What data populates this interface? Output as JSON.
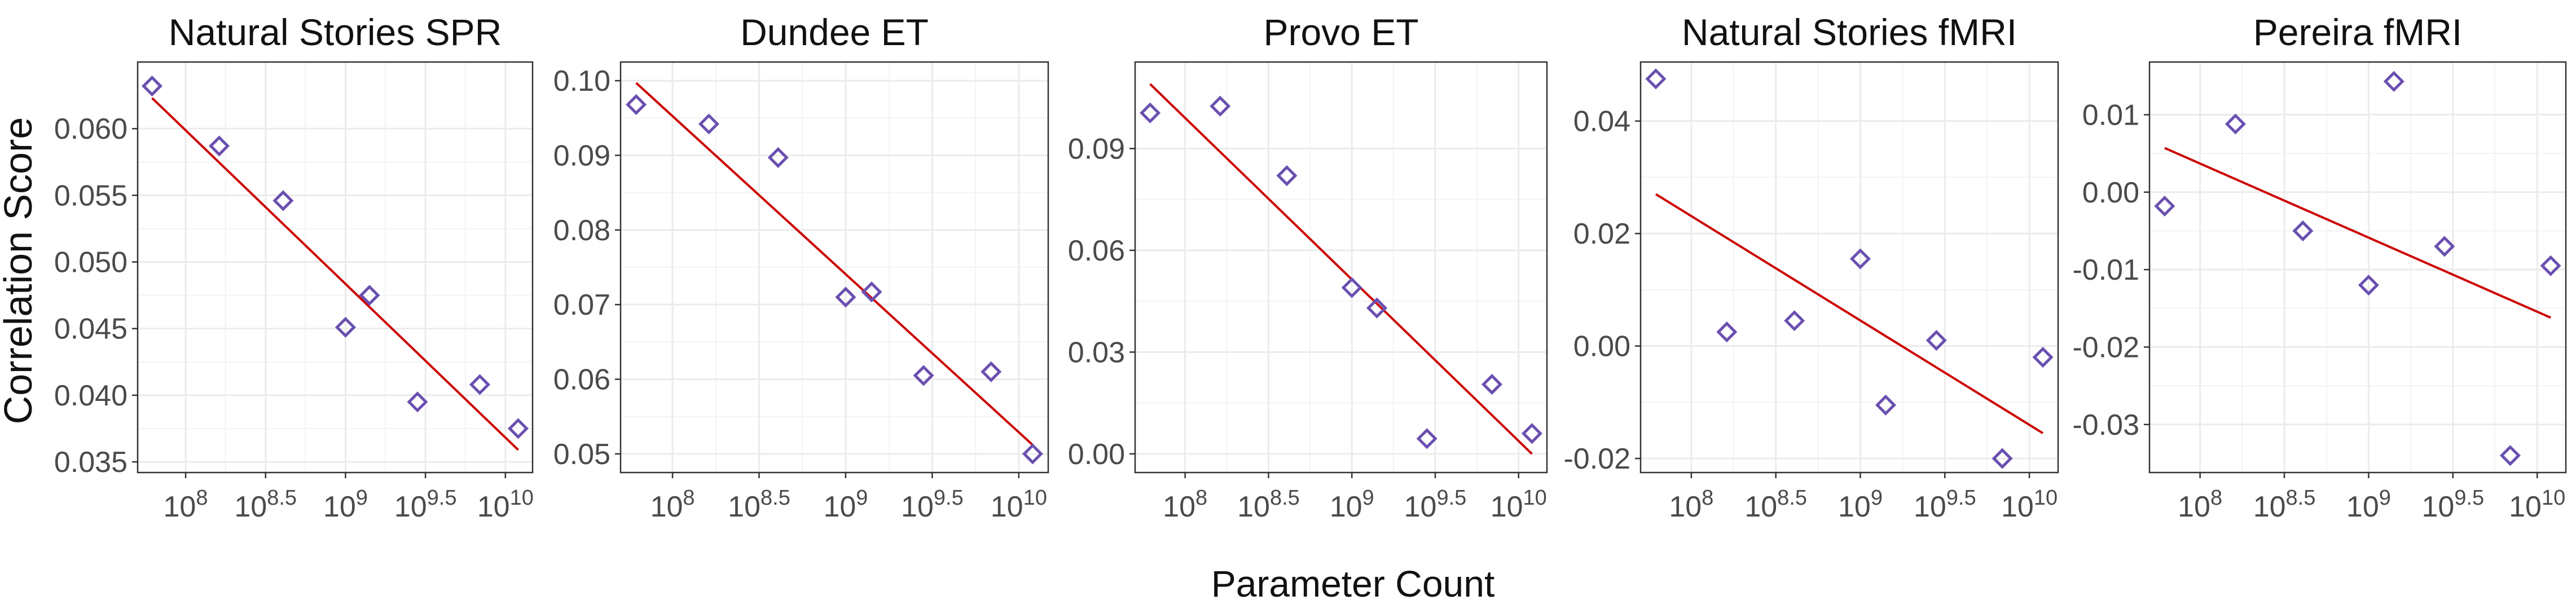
{
  "figure": {
    "ylabel": "Correlation Score",
    "xlabel": "Parameter Count",
    "colors": {
      "points": "#6a4fb0",
      "fit_line": "#cc0000",
      "panel_border": "#333333",
      "grid": "#ebebeb"
    }
  },
  "chart_data": [
    {
      "type": "scatter",
      "title": "Natural Stories SPR",
      "x_scale": "log10",
      "xlim_log10": [
        7.7,
        10.17
      ],
      "x_ticks": [
        {
          "log10": 8,
          "base": "10",
          "exp": "8"
        },
        {
          "log10": 8.5,
          "base": "10",
          "exp": "8.5"
        },
        {
          "log10": 9,
          "base": "10",
          "exp": "9"
        },
        {
          "log10": 9.5,
          "base": "10",
          "exp": "9.5"
        },
        {
          "log10": 10,
          "base": "10",
          "exp": "10"
        }
      ],
      "ylim": [
        0.0342,
        0.065
      ],
      "y_ticks": [
        0.035,
        0.04,
        0.045,
        0.05,
        0.055,
        0.06
      ],
      "y_tick_labels": [
        "0.035",
        "0.040",
        "0.045",
        "0.050",
        "0.055",
        "0.060"
      ],
      "points": [
        {
          "x": 7.79,
          "y": 0.0632
        },
        {
          "x": 8.21,
          "y": 0.0587
        },
        {
          "x": 8.61,
          "y": 0.0546
        },
        {
          "x": 9.0,
          "y": 0.0451
        },
        {
          "x": 9.15,
          "y": 0.0475
        },
        {
          "x": 9.45,
          "y": 0.0395
        },
        {
          "x": 9.84,
          "y": 0.0408
        },
        {
          "x": 10.08,
          "y": 0.0375
        }
      ],
      "fit_line": [
        {
          "x": 7.79,
          "y": 0.0623
        },
        {
          "x": 10.08,
          "y": 0.0359
        }
      ],
      "grid": true
    },
    {
      "type": "scatter",
      "title": "Dundee ET",
      "x_scale": "log10",
      "xlim_log10": [
        7.7,
        10.17
      ],
      "x_ticks": [
        {
          "log10": 8,
          "base": "10",
          "exp": "8"
        },
        {
          "log10": 8.5,
          "base": "10",
          "exp": "8.5"
        },
        {
          "log10": 9,
          "base": "10",
          "exp": "9"
        },
        {
          "log10": 9.5,
          "base": "10",
          "exp": "9.5"
        },
        {
          "log10": 10,
          "base": "10",
          "exp": "10"
        }
      ],
      "ylim": [
        0.0475,
        0.1025
      ],
      "y_ticks": [
        0.05,
        0.06,
        0.07,
        0.08,
        0.09,
        0.1
      ],
      "y_tick_labels": [
        "0.05",
        "0.06",
        "0.07",
        "0.08",
        "0.09",
        "0.10"
      ],
      "points": [
        {
          "x": 7.79,
          "y": 0.0968
        },
        {
          "x": 8.21,
          "y": 0.0942
        },
        {
          "x": 8.61,
          "y": 0.0897
        },
        {
          "x": 9.0,
          "y": 0.071
        },
        {
          "x": 9.15,
          "y": 0.0717
        },
        {
          "x": 9.45,
          "y": 0.0605
        },
        {
          "x": 9.84,
          "y": 0.061
        },
        {
          "x": 10.08,
          "y": 0.05
        }
      ],
      "fit_line": [
        {
          "x": 7.79,
          "y": 0.0997
        },
        {
          "x": 10.08,
          "y": 0.0512
        }
      ],
      "grid": true
    },
    {
      "type": "scatter",
      "title": "Provo ET",
      "x_scale": "log10",
      "xlim_log10": [
        7.7,
        10.17
      ],
      "x_ticks": [
        {
          "log10": 8,
          "base": "10",
          "exp": "8"
        },
        {
          "log10": 8.5,
          "base": "10",
          "exp": "8.5"
        },
        {
          "log10": 9,
          "base": "10",
          "exp": "9"
        },
        {
          "log10": 9.5,
          "base": "10",
          "exp": "9.5"
        },
        {
          "log10": 10,
          "base": "10",
          "exp": "10"
        }
      ],
      "ylim": [
        -0.0055,
        0.1155
      ],
      "y_ticks": [
        0.0,
        0.03,
        0.06,
        0.09
      ],
      "y_tick_labels": [
        "0.00",
        "0.03",
        "0.06",
        "0.09"
      ],
      "points": [
        {
          "x": 7.79,
          "y": 0.1005
        },
        {
          "x": 8.21,
          "y": 0.1025
        },
        {
          "x": 8.61,
          "y": 0.082
        },
        {
          "x": 9.0,
          "y": 0.049
        },
        {
          "x": 9.15,
          "y": 0.043
        },
        {
          "x": 9.45,
          "y": 0.0045
        },
        {
          "x": 9.84,
          "y": 0.0205
        },
        {
          "x": 10.08,
          "y": 0.006
        }
      ],
      "fit_line": [
        {
          "x": 7.79,
          "y": 0.109
        },
        {
          "x": 10.08,
          "y": 0.0
        }
      ],
      "grid": true
    },
    {
      "type": "scatter",
      "title": "Natural Stories fMRI",
      "x_scale": "log10",
      "xlim_log10": [
        7.7,
        10.17
      ],
      "x_ticks": [
        {
          "log10": 8,
          "base": "10",
          "exp": "8"
        },
        {
          "log10": 8.5,
          "base": "10",
          "exp": "8.5"
        },
        {
          "log10": 9,
          "base": "10",
          "exp": "9"
        },
        {
          "log10": 9.5,
          "base": "10",
          "exp": "9.5"
        },
        {
          "log10": 10,
          "base": "10",
          "exp": "10"
        }
      ],
      "ylim": [
        -0.0225,
        0.0505
      ],
      "y_ticks": [
        -0.02,
        0.0,
        0.02,
        0.04
      ],
      "y_tick_labels": [
        "-0.02",
        "0.00",
        "0.02",
        "0.04"
      ],
      "points": [
        {
          "x": 7.79,
          "y": 0.0475
        },
        {
          "x": 8.21,
          "y": 0.0025
        },
        {
          "x": 8.61,
          "y": 0.0045
        },
        {
          "x": 9.0,
          "y": 0.0155
        },
        {
          "x": 9.15,
          "y": -0.0105
        },
        {
          "x": 9.45,
          "y": 0.001
        },
        {
          "x": 9.84,
          "y": -0.02
        },
        {
          "x": 10.08,
          "y": -0.002
        }
      ],
      "fit_line": [
        {
          "x": 7.79,
          "y": 0.027
        },
        {
          "x": 10.08,
          "y": -0.0155
        }
      ],
      "grid": true
    },
    {
      "type": "scatter",
      "title": "Pereira fMRI",
      "x_scale": "log10",
      "xlim_log10": [
        7.7,
        10.17
      ],
      "x_ticks": [
        {
          "log10": 8,
          "base": "10",
          "exp": "8"
        },
        {
          "log10": 8.5,
          "base": "10",
          "exp": "8.5"
        },
        {
          "log10": 9,
          "base": "10",
          "exp": "9"
        },
        {
          "log10": 9.5,
          "base": "10",
          "exp": "9.5"
        },
        {
          "log10": 10,
          "base": "10",
          "exp": "10"
        }
      ],
      "ylim": [
        -0.0362,
        0.0168
      ],
      "y_ticks": [
        -0.03,
        -0.02,
        -0.01,
        0.0,
        0.01
      ],
      "y_tick_labels": [
        "-0.03",
        "-0.02",
        "-0.01",
        "0.00",
        "0.01"
      ],
      "points": [
        {
          "x": 7.79,
          "y": -0.0018
        },
        {
          "x": 8.21,
          "y": 0.0088
        },
        {
          "x": 8.61,
          "y": -0.005
        },
        {
          "x": 9.0,
          "y": -0.012
        },
        {
          "x": 9.15,
          "y": 0.0143
        },
        {
          "x": 9.45,
          "y": -0.007
        },
        {
          "x": 9.84,
          "y": -0.034
        },
        {
          "x": 10.08,
          "y": -0.0095
        }
      ],
      "fit_line": [
        {
          "x": 7.79,
          "y": 0.0057
        },
        {
          "x": 10.08,
          "y": -0.0162
        }
      ],
      "grid": true
    }
  ]
}
